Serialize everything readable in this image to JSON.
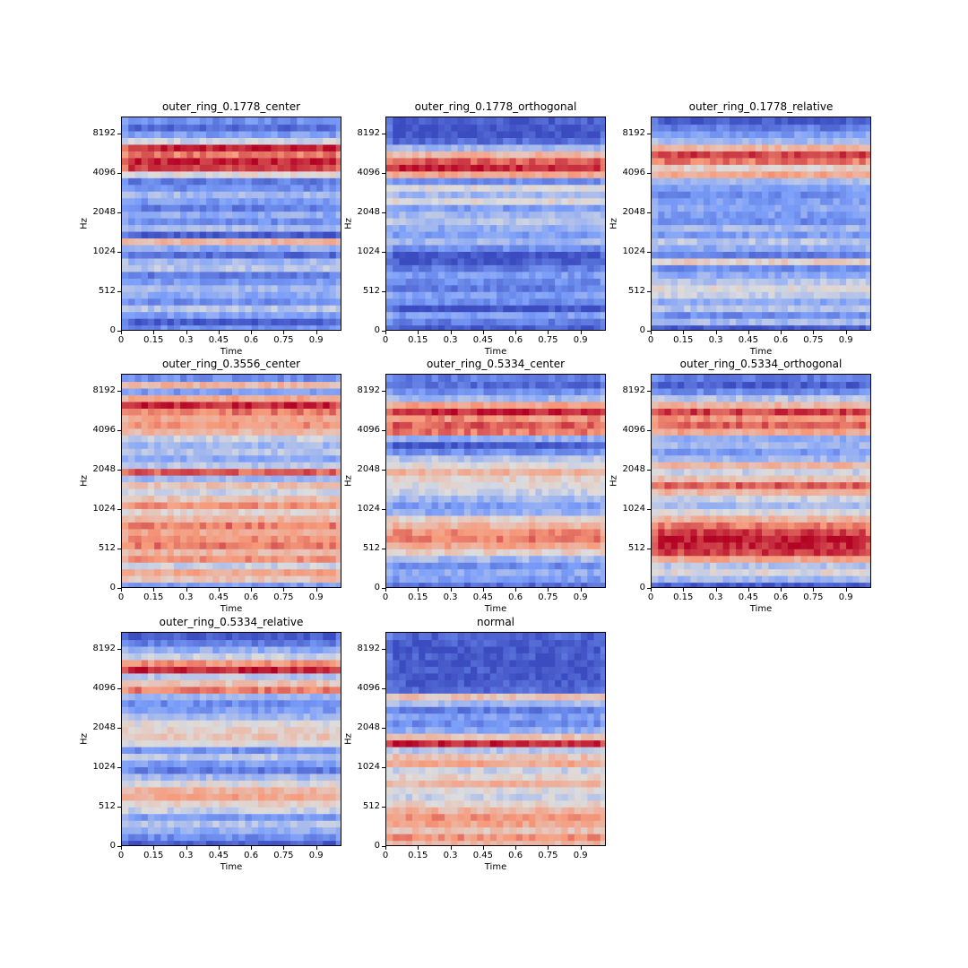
{
  "chart_data": [
    {
      "type": "heatmap",
      "title": "outer_ring_0.1778_center",
      "xlabel": "Time",
      "ylabel": "Hz",
      "x_ticks": [
        "0",
        "0.15",
        "0.3",
        "0.45",
        "0.6",
        "0.75",
        "0.9"
      ],
      "y_ticks": [
        "0",
        "512",
        "1024",
        "2048",
        "4096",
        "8192"
      ],
      "bands": [
        -0.6,
        -0.9,
        -0.5,
        -0.2,
        -0.6,
        -0.4,
        -0.3,
        -0.5,
        -0.7,
        -0.2,
        -0.3,
        -0.8,
        -0.4,
        0.3,
        -0.9,
        -0.3,
        -0.6,
        -0.4,
        -0.7,
        -0.5,
        -0.3,
        -0.6,
        -0.7,
        0.0,
        0.8,
        0.9,
        0.6,
        0.9,
        -0.1,
        -0.5,
        -0.8,
        -0.6
      ]
    },
    {
      "type": "heatmap",
      "title": "outer_ring_0.1778_orthogonal",
      "xlabel": "Time",
      "ylabel": "Hz",
      "x_ticks": [
        "0",
        "0.15",
        "0.3",
        "0.45",
        "0.6",
        "0.75",
        "0.9"
      ],
      "y_ticks": [
        "0",
        "512",
        "1024",
        "2048",
        "4096",
        "8192"
      ],
      "bands": [
        -0.9,
        -0.7,
        -0.5,
        -0.95,
        -0.6,
        -0.5,
        -0.7,
        -0.6,
        -0.5,
        -0.7,
        -0.9,
        -0.95,
        -0.6,
        -0.3,
        -0.5,
        -0.4,
        -0.2,
        -0.3,
        -0.5,
        0.0,
        -0.3,
        0.0,
        -0.6,
        0.4,
        0.9,
        0.7,
        0.3,
        -0.3,
        -0.8,
        -0.95,
        -0.95,
        -0.9
      ]
    },
    {
      "type": "heatmap",
      "title": "outer_ring_0.1778_relative",
      "xlabel": "Time",
      "ylabel": "Hz",
      "x_ticks": [
        "0",
        "0.15",
        "0.3",
        "0.45",
        "0.6",
        "0.75",
        "0.9"
      ],
      "y_ticks": [
        "0",
        "512",
        "1024",
        "2048",
        "4096",
        "8192"
      ],
      "bands": [
        -0.95,
        -0.3,
        -0.6,
        -0.2,
        -0.4,
        -0.1,
        0.0,
        -0.2,
        -0.4,
        -0.6,
        0.1,
        -0.7,
        -0.4,
        -0.2,
        -0.5,
        -0.3,
        -0.6,
        -0.5,
        -0.4,
        -0.5,
        -0.6,
        -0.5,
        -0.3,
        0.4,
        0.1,
        0.6,
        0.8,
        0.3,
        -0.3,
        -0.5,
        -0.7,
        -0.9
      ]
    },
    {
      "type": "heatmap",
      "title": "outer_ring_0.3556_center",
      "xlabel": "Time",
      "ylabel": "Hz",
      "x_ticks": [
        "0",
        "0.15",
        "0.3",
        "0.45",
        "0.6",
        "0.75",
        "0.9"
      ],
      "y_ticks": [
        "0",
        "512",
        "1024",
        "2048",
        "4096",
        "8192"
      ],
      "bands": [
        -0.5,
        0.2,
        0.4,
        -0.1,
        0.5,
        0.3,
        0.6,
        0.5,
        0.4,
        0.6,
        0.3,
        0.1,
        0.5,
        0.2,
        -0.1,
        0.2,
        -0.3,
        0.7,
        -0.2,
        -0.4,
        -0.2,
        -0.3,
        -0.1,
        0.3,
        0.5,
        0.4,
        0.6,
        0.9,
        0.4,
        -0.5,
        0.3,
        -0.6
      ]
    },
    {
      "type": "heatmap",
      "title": "outer_ring_0.5334_center",
      "xlabel": "Time",
      "ylabel": "Hz",
      "x_ticks": [
        "0",
        "0.15",
        "0.3",
        "0.45",
        "0.6",
        "0.75",
        "0.9"
      ],
      "y_ticks": [
        "0",
        "512",
        "1024",
        "2048",
        "4096",
        "8192"
      ],
      "bands": [
        -0.8,
        -0.5,
        -0.4,
        -0.6,
        -0.3,
        0.1,
        0.4,
        0.6,
        0.5,
        0.3,
        0.1,
        -0.4,
        -0.5,
        -0.3,
        -0.1,
        0.0,
        0.1,
        0.3,
        0.0,
        -0.2,
        -0.6,
        -0.9,
        -0.4,
        0.6,
        0.7,
        0.5,
        0.9,
        0.4,
        -0.3,
        -0.6,
        -0.8,
        -0.7
      ]
    },
    {
      "type": "heatmap",
      "title": "outer_ring_0.5334_orthogonal",
      "xlabel": "Time",
      "ylabel": "Hz",
      "x_ticks": [
        "0",
        "0.15",
        "0.3",
        "0.45",
        "0.6",
        "0.75",
        "0.9"
      ],
      "y_ticks": [
        "0",
        "512",
        "1024",
        "2048",
        "4096",
        "8192"
      ],
      "bands": [
        -0.9,
        -0.3,
        0.0,
        -0.2,
        0.4,
        0.8,
        0.9,
        0.95,
        0.8,
        0.6,
        0.3,
        0.0,
        -0.3,
        -0.1,
        0.3,
        0.7,
        0.2,
        -0.1,
        0.3,
        -0.3,
        -0.5,
        -0.3,
        -0.4,
        0.4,
        0.7,
        0.5,
        0.8,
        0.3,
        -0.2,
        -0.6,
        -0.9,
        -0.7
      ]
    },
    {
      "type": "heatmap",
      "title": "outer_ring_0.5334_relative",
      "xlabel": "Time",
      "ylabel": "Hz",
      "x_ticks": [
        "0",
        "0.15",
        "0.3",
        "0.45",
        "0.6",
        "0.75",
        "0.9"
      ],
      "y_ticks": [
        "0",
        "512",
        "1024",
        "2048",
        "4096",
        "8192"
      ],
      "bands": [
        -0.9,
        -0.6,
        -0.4,
        -0.2,
        -0.5,
        -0.1,
        0.1,
        0.4,
        0.3,
        0.0,
        -0.3,
        -0.7,
        -0.5,
        -0.2,
        -0.6,
        0.0,
        0.2,
        0.1,
        0.0,
        -0.3,
        -0.5,
        -0.6,
        -0.3,
        0.6,
        0.2,
        -0.2,
        0.9,
        0.5,
        -0.1,
        -0.4,
        -0.7,
        -0.9
      ]
    },
    {
      "type": "heatmap",
      "title": "normal",
      "xlabel": "Time",
      "ylabel": "Hz",
      "x_ticks": [
        "0",
        "0.15",
        "0.3",
        "0.45",
        "0.6",
        "0.75",
        "0.9"
      ],
      "y_ticks": [
        "0",
        "512",
        "1024",
        "2048",
        "4096",
        "8192"
      ],
      "bands": [
        0.3,
        0.5,
        0.2,
        0.4,
        0.5,
        0.3,
        0.1,
        -0.1,
        0.0,
        0.3,
        0.1,
        -0.1,
        0.4,
        0.2,
        -0.2,
        0.9,
        0.2,
        -0.4,
        -0.6,
        -0.5,
        -0.7,
        -0.3,
        0.2,
        -0.8,
        -0.9,
        -0.95,
        -0.9,
        -0.95,
        -0.9,
        -0.95,
        -0.9,
        -0.85
      ]
    }
  ]
}
